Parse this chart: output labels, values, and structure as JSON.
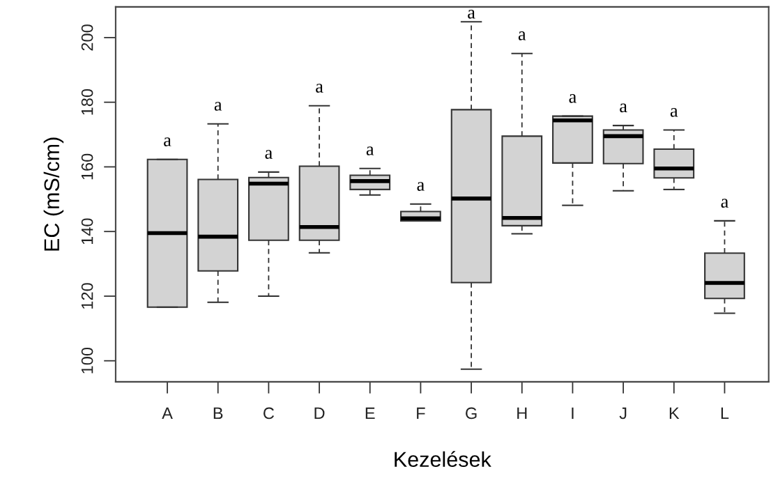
{
  "chart_data": {
    "type": "box",
    "xlabel": "Kezelések",
    "ylabel": "EC (mS/cm)",
    "categories": [
      "A",
      "B",
      "C",
      "D",
      "E",
      "F",
      "G",
      "H",
      "I",
      "J",
      "K",
      "L"
    ],
    "boxes": [
      {
        "low": 116.6,
        "q1": 116.6,
        "median": 139.5,
        "q3": 162.3,
        "high": 162.3
      },
      {
        "low": 118.1,
        "q1": 127.8,
        "median": 138.4,
        "q3": 156.1,
        "high": 173.3
      },
      {
        "low": 120.0,
        "q1": 137.3,
        "median": 154.8,
        "q3": 156.7,
        "high": 158.4
      },
      {
        "low": 133.4,
        "q1": 137.3,
        "median": 141.4,
        "q3": 160.2,
        "high": 178.9
      },
      {
        "low": 151.3,
        "q1": 153.0,
        "median": 155.6,
        "q3": 157.4,
        "high": 159.5
      },
      {
        "low": 143.3,
        "q1": 143.3,
        "median": 144.1,
        "q3": 146.2,
        "high": 148.5
      },
      {
        "low": 97.4,
        "q1": 124.2,
        "median": 150.2,
        "q3": 177.7,
        "high": 204.9
      },
      {
        "low": 139.3,
        "q1": 141.8,
        "median": 144.2,
        "q3": 169.5,
        "high": 195.1
      },
      {
        "low": 148.1,
        "q1": 161.2,
        "median": 174.4,
        "q3": 175.7,
        "high": 175.7
      },
      {
        "low": 152.6,
        "q1": 161.0,
        "median": 169.5,
        "q3": 171.4,
        "high": 172.8
      },
      {
        "low": 153.0,
        "q1": 156.6,
        "median": 159.5,
        "q3": 165.5,
        "high": 171.4
      },
      {
        "low": 114.7,
        "q1": 119.3,
        "median": 124.1,
        "q3": 133.3,
        "high": 143.3
      }
    ],
    "color": "#d3d3d3",
    "ylim": [
      93.5,
      209.5
    ],
    "yticks": [
      100,
      120,
      140,
      160,
      180,
      200
    ],
    "grid": false,
    "annotations": [
      "a",
      "a",
      "a",
      "a",
      "a",
      "a",
      "a",
      "a",
      "a",
      "a",
      "a",
      "a"
    ]
  }
}
